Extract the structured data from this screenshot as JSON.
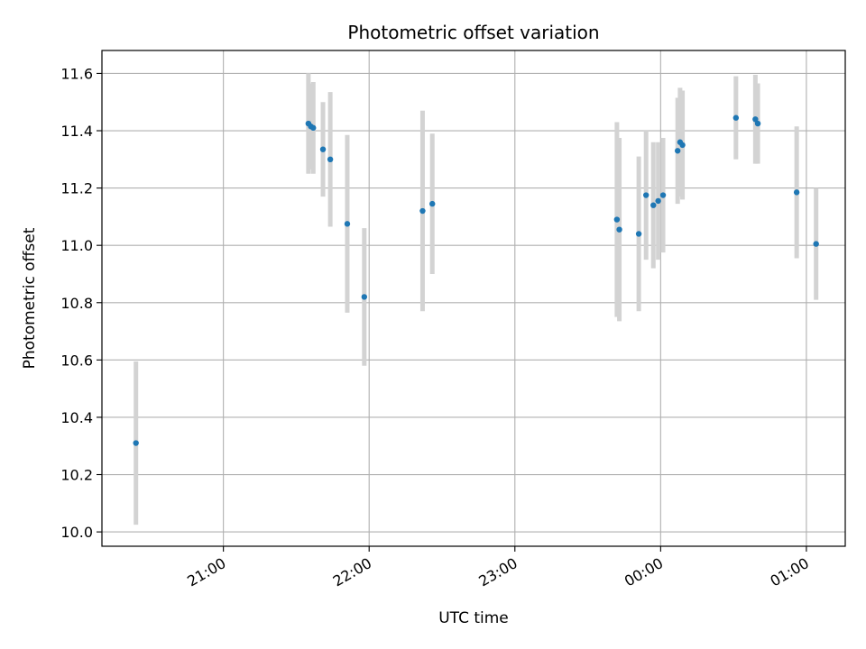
{
  "chart_data": {
    "type": "scatter",
    "title": "Photometric offset variation",
    "xlabel": "UTC time",
    "ylabel": "Photometric offset",
    "x_ticks": [
      "21:00",
      "22:00",
      "23:00",
      "00:00",
      "01:00"
    ],
    "y_ticks": [
      "10.0",
      "10.2",
      "10.4",
      "10.6",
      "10.8",
      "11.0",
      "11.2",
      "11.4",
      "11.6"
    ],
    "xlim": [
      "20:10",
      "01:16"
    ],
    "ylim": [
      9.95,
      11.68
    ],
    "grid": true,
    "x_tick_rotation_deg": 30,
    "colors": {
      "point": "#1f77b4",
      "errorbar": "#d3d3d3",
      "grid": "#b0b0b0"
    },
    "points": [
      {
        "t": "20:24",
        "y": 10.31,
        "err": 0.285
      },
      {
        "t": "21:35",
        "y": 11.425,
        "err": 0.175
      },
      {
        "t": "21:36",
        "y": 11.415,
        "err": 0.15
      },
      {
        "t": "21:37",
        "y": 11.41,
        "err": 0.16
      },
      {
        "t": "21:41",
        "y": 11.335,
        "err": 0.165
      },
      {
        "t": "21:44",
        "y": 11.3,
        "err": 0.235
      },
      {
        "t": "21:51",
        "y": 11.075,
        "err": 0.31
      },
      {
        "t": "21:58",
        "y": 10.82,
        "err": 0.24
      },
      {
        "t": "22:22",
        "y": 11.12,
        "err": 0.35
      },
      {
        "t": "22:26",
        "y": 11.145,
        "err": 0.245
      },
      {
        "t": "23:42",
        "y": 11.09,
        "err": 0.34
      },
      {
        "t": "23:43",
        "y": 11.055,
        "err": 0.32
      },
      {
        "t": "23:51",
        "y": 11.04,
        "err": 0.27
      },
      {
        "t": "23:54",
        "y": 11.175,
        "err": 0.225
      },
      {
        "t": "23:57",
        "y": 11.14,
        "err": 0.22
      },
      {
        "t": "23:59",
        "y": 11.155,
        "err": 0.205
      },
      {
        "t": "00:01",
        "y": 11.175,
        "err": 0.2
      },
      {
        "t": "00:07",
        "y": 11.33,
        "err": 0.185
      },
      {
        "t": "00:08",
        "y": 11.36,
        "err": 0.19
      },
      {
        "t": "00:09",
        "y": 11.35,
        "err": 0.19
      },
      {
        "t": "00:31",
        "y": 11.445,
        "err": 0.145
      },
      {
        "t": "00:39",
        "y": 11.44,
        "err": 0.155
      },
      {
        "t": "00:40",
        "y": 11.425,
        "err": 0.14
      },
      {
        "t": "00:56",
        "y": 11.185,
        "err": 0.23
      },
      {
        "t": "01:04",
        "y": 11.005,
        "err": 0.195
      }
    ]
  }
}
